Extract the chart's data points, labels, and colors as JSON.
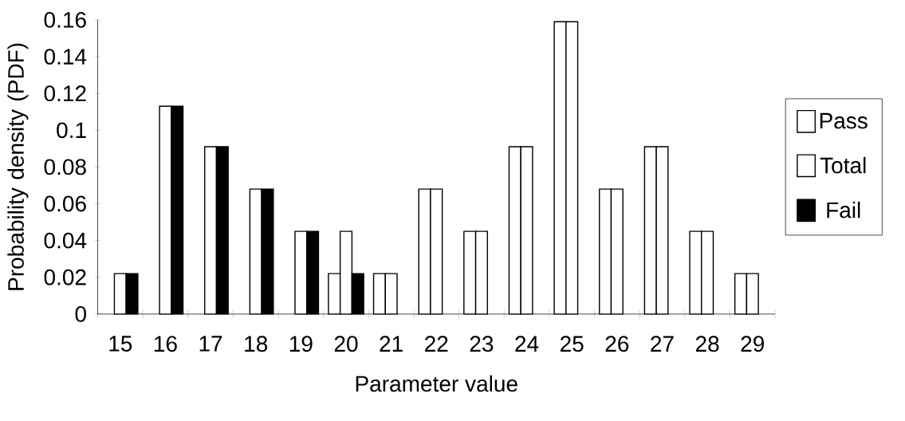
{
  "chart_data": {
    "type": "bar",
    "xlabel": "Parameter value",
    "ylabel": "Probability density (PDF)",
    "categories": [
      "15",
      "16",
      "17",
      "18",
      "19",
      "20",
      "21",
      "22",
      "23",
      "24",
      "25",
      "26",
      "27",
      "28",
      "29"
    ],
    "series": [
      {
        "name": "Pass",
        "color": "#ffffff",
        "values": [
          null,
          null,
          null,
          null,
          null,
          0.022,
          0.022,
          0.068,
          0.045,
          0.091,
          0.159,
          0.068,
          0.091,
          0.045,
          0.022
        ]
      },
      {
        "name": "Total",
        "color": "#ffffff",
        "values": [
          0.022,
          0.113,
          0.091,
          0.068,
          0.045,
          0.045,
          0.022,
          0.068,
          0.045,
          0.091,
          0.159,
          0.068,
          0.091,
          0.045,
          0.022
        ]
      },
      {
        "name": "Fail",
        "color": "#000000",
        "values": [
          0.022,
          0.113,
          0.091,
          0.068,
          0.045,
          0.022,
          null,
          null,
          null,
          null,
          null,
          null,
          null,
          null,
          null
        ]
      }
    ],
    "ylim": [
      0,
      0.16
    ],
    "yticks": [
      0,
      0.02,
      0.04,
      0.06,
      0.08,
      0.1,
      0.12,
      0.14,
      0.16
    ],
    "grid": false,
    "legend": "right"
  }
}
